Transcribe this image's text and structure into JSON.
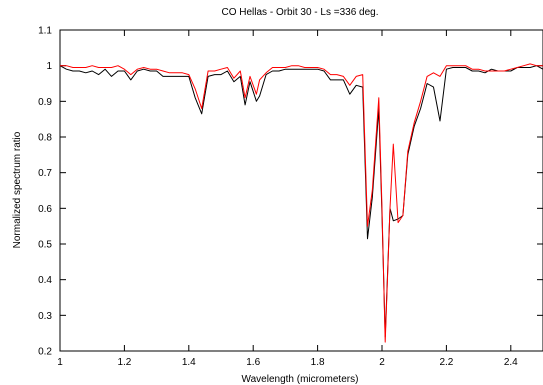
{
  "chart_data": {
    "type": "line",
    "title": "CO Hellas - Orbit 30 - Ls =336 deg.",
    "xlabel": "Wavelength (micrometers)",
    "ylabel": "Normalized spectrum ratio",
    "xlim": [
      1.0,
      2.5
    ],
    "ylim": [
      0.2,
      1.1
    ],
    "xticks": [
      "1",
      "1.2",
      "1.4",
      "1.6",
      "1.8",
      "2",
      "2.2",
      "2.4"
    ],
    "xtick_values": [
      1.0,
      1.2,
      1.4,
      1.6,
      1.8,
      2.0,
      2.2,
      2.4
    ],
    "yticks": [
      "0.2",
      "0.3",
      "0.4",
      "0.5",
      "0.6",
      "0.7",
      "0.8",
      "0.9",
      "1",
      "1.1"
    ],
    "ytick_values": [
      0.2,
      0.3,
      0.4,
      0.5,
      0.6,
      0.7,
      0.8,
      0.9,
      1.0,
      1.1
    ],
    "grid": false,
    "legend": "none",
    "series": [
      {
        "color": "#000000",
        "x": [
          1.0,
          1.02,
          1.04,
          1.06,
          1.08,
          1.1,
          1.12,
          1.14,
          1.16,
          1.18,
          1.2,
          1.22,
          1.24,
          1.26,
          1.28,
          1.3,
          1.32,
          1.34,
          1.36,
          1.38,
          1.4,
          1.42,
          1.44,
          1.46,
          1.48,
          1.5,
          1.52,
          1.54,
          1.56,
          1.575,
          1.59,
          1.61,
          1.62,
          1.64,
          1.66,
          1.68,
          1.7,
          1.72,
          1.74,
          1.76,
          1.78,
          1.8,
          1.82,
          1.84,
          1.86,
          1.88,
          1.9,
          1.92,
          1.94,
          1.955,
          1.97,
          1.99,
          2.0,
          2.01,
          2.025,
          2.035,
          2.05,
          2.065,
          2.08,
          2.1,
          2.12,
          2.14,
          2.16,
          2.18,
          2.2,
          2.22,
          2.24,
          2.26,
          2.28,
          2.3,
          2.32,
          2.34,
          2.36,
          2.38,
          2.4,
          2.42,
          2.44,
          2.46,
          2.48,
          2.5
        ],
        "y": [
          1.0,
          0.99,
          0.985,
          0.985,
          0.98,
          0.985,
          0.975,
          0.99,
          0.97,
          0.985,
          0.985,
          0.96,
          0.985,
          0.99,
          0.985,
          0.985,
          0.97,
          0.97,
          0.97,
          0.97,
          0.97,
          0.91,
          0.865,
          0.97,
          0.975,
          0.975,
          0.985,
          0.955,
          0.97,
          0.89,
          0.955,
          0.9,
          0.915,
          0.975,
          0.985,
          0.985,
          0.99,
          0.99,
          0.99,
          0.99,
          0.99,
          0.99,
          0.985,
          0.96,
          0.96,
          0.96,
          0.92,
          0.945,
          0.94,
          0.515,
          0.63,
          0.88,
          0.58,
          0.24,
          0.6,
          0.565,
          0.57,
          0.58,
          0.75,
          0.83,
          0.88,
          0.95,
          0.94,
          0.845,
          0.99,
          0.995,
          0.995,
          0.995,
          0.985,
          0.985,
          0.98,
          0.99,
          0.985,
          0.985,
          0.985,
          0.995,
          0.995,
          0.995,
          1.0,
          0.99
        ]
      },
      {
        "color": "#ff0000",
        "x": [
          1.0,
          1.02,
          1.04,
          1.06,
          1.08,
          1.1,
          1.12,
          1.14,
          1.16,
          1.18,
          1.2,
          1.22,
          1.24,
          1.26,
          1.28,
          1.3,
          1.32,
          1.34,
          1.36,
          1.38,
          1.4,
          1.42,
          1.44,
          1.46,
          1.48,
          1.5,
          1.52,
          1.54,
          1.56,
          1.575,
          1.59,
          1.61,
          1.62,
          1.64,
          1.66,
          1.68,
          1.7,
          1.72,
          1.74,
          1.76,
          1.78,
          1.8,
          1.82,
          1.84,
          1.86,
          1.88,
          1.9,
          1.92,
          1.94,
          1.955,
          1.97,
          1.99,
          2.0,
          2.01,
          2.025,
          2.035,
          2.05,
          2.065,
          2.08,
          2.1,
          2.12,
          2.14,
          2.16,
          2.18,
          2.2,
          2.22,
          2.24,
          2.26,
          2.28,
          2.3,
          2.32,
          2.34,
          2.36,
          2.38,
          2.4,
          2.42,
          2.44,
          2.46,
          2.48,
          2.5
        ],
        "y": [
          1.0,
          1.0,
          0.995,
          0.995,
          0.995,
          1.0,
          0.995,
          0.995,
          0.995,
          1.0,
          0.99,
          0.975,
          0.99,
          0.995,
          0.99,
          0.99,
          0.985,
          0.98,
          0.98,
          0.98,
          0.975,
          0.935,
          0.88,
          0.985,
          0.985,
          0.99,
          0.995,
          0.965,
          0.985,
          0.91,
          0.97,
          0.92,
          0.96,
          0.98,
          0.995,
          0.995,
          0.995,
          1.0,
          1.0,
          0.995,
          0.995,
          0.995,
          0.99,
          0.975,
          0.975,
          0.97,
          0.945,
          0.97,
          0.975,
          0.55,
          0.65,
          0.91,
          0.6,
          0.225,
          0.6,
          0.78,
          0.56,
          0.58,
          0.76,
          0.84,
          0.9,
          0.97,
          0.98,
          0.97,
          1.0,
          1.0,
          1.0,
          1.0,
          0.99,
          0.99,
          0.985,
          0.985,
          0.985,
          0.985,
          0.99,
          0.995,
          1.0,
          1.005,
          1.0,
          1.0
        ]
      }
    ]
  }
}
